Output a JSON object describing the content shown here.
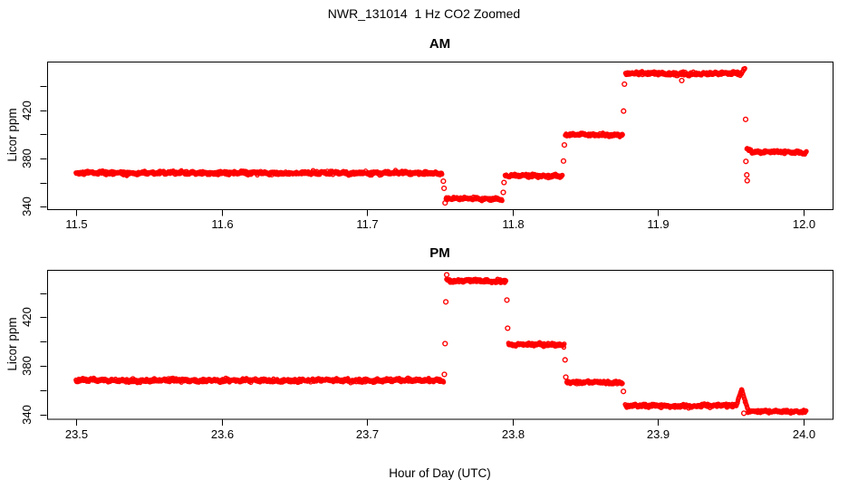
{
  "title": "NWR_131014  1 Hz CO2 Zoomed",
  "xlabel": "Hour of Day (UTC)",
  "colors": {
    "points": "#FF0000",
    "axis": "#000000",
    "background": "#FFFFFF"
  },
  "chart_data": [
    {
      "type": "scatter",
      "panel": "AM",
      "title": "AM",
      "ylabel": "Licor ppm",
      "marker": "open-circle",
      "sample_rate_hz": 1,
      "xlim": [
        11.48,
        12.02
      ],
      "ylim": [
        338.0,
        460.3
      ],
      "xticks": [
        "11.5",
        "11.6",
        "11.7",
        "11.8",
        "11.9",
        "12.0"
      ],
      "yticks_labeled": [
        "340",
        "380",
        "420"
      ],
      "yticks_unlabeled": [
        360,
        400,
        440
      ],
      "grid": false,
      "segments": [
        {
          "t0": 11.4998,
          "t1": 11.7515,
          "v": 368.0,
          "n": 1.5
        },
        {
          "t0": 11.7542,
          "t1": 11.793,
          "v": 346.5,
          "n": 1.3
        },
        {
          "t0": 11.7948,
          "t1": 11.8345,
          "v": 365.6,
          "n": 1.3
        },
        {
          "t0": 11.8362,
          "t1": 11.8758,
          "v": 399.6,
          "n": 1.3
        },
        {
          "t0": 11.8776,
          "t1": 11.9572,
          "v": 450.3,
          "n": 1.5
        },
        {
          "t0": 11.9572,
          "t1": 11.9598,
          "v0": 450.8,
          "v1": 454.6,
          "n": 0.9
        },
        {
          "t0": 11.961,
          "t1": 11.9645,
          "v0": 388.6,
          "v1": 385.8,
          "n": 0.9
        },
        {
          "t0": 11.9645,
          "t1": 12.002,
          "v": 385.2,
          "n": 1.2
        }
      ],
      "outliers": [
        [
          11.7524,
          361.2
        ],
        [
          11.7529,
          355.3
        ],
        [
          11.7536,
          343.2
        ],
        [
          11.7936,
          351.9
        ],
        [
          11.7941,
          360.1
        ],
        [
          11.835,
          377.9
        ],
        [
          11.8356,
          391.2
        ],
        [
          11.8763,
          419.3
        ],
        [
          11.8769,
          441.6
        ],
        [
          11.9163,
          444.6
        ],
        [
          11.9602,
          412.4
        ],
        [
          11.9604,
          377.6
        ],
        [
          11.961,
          366.4
        ],
        [
          11.9613,
          361.6
        ]
      ]
    },
    {
      "type": "scatter",
      "panel": "PM",
      "title": "PM",
      "ylabel": "Licor ppm",
      "marker": "open-circle",
      "sample_rate_hz": 1,
      "xlim": [
        23.48,
        24.02
      ],
      "ylim": [
        336.3,
        459.1
      ],
      "xticks": [
        "23.5",
        "23.6",
        "23.7",
        "23.8",
        "23.9",
        "24.0"
      ],
      "yticks_labeled": [
        "340",
        "380",
        "420"
      ],
      "yticks_unlabeled": [
        360,
        400,
        440
      ],
      "grid": false,
      "segments": [
        {
          "t0": 23.4998,
          "t1": 23.7526,
          "v": 368.0,
          "n": 1.5
        },
        {
          "t0": 23.7546,
          "t1": 23.7956,
          "v": 450.0,
          "n": 1.5
        },
        {
          "t0": 23.7972,
          "t1": 23.8356,
          "v": 397.4,
          "n": 1.3
        },
        {
          "t0": 23.8372,
          "t1": 23.8758,
          "v": 366.2,
          "n": 1.3
        },
        {
          "t0": 23.8774,
          "t1": 23.9538,
          "v": 347.0,
          "n": 1.4
        },
        {
          "t0": 23.9538,
          "t1": 23.9576,
          "v0": 347.5,
          "v1": 361.0,
          "n": 0.8
        },
        {
          "t0": 23.9576,
          "t1": 23.9618,
          "v0": 360.5,
          "v1": 343.2,
          "n": 0.8
        },
        {
          "t0": 23.9618,
          "t1": 24.002,
          "v": 342.3,
          "n": 1.1
        }
      ],
      "outliers": [
        [
          23.7531,
          372.9
        ],
        [
          23.7536,
          398.3
        ],
        [
          23.7541,
          432.7
        ],
        [
          23.7547,
          455.0
        ],
        [
          23.7961,
          434.2
        ],
        [
          23.7966,
          411.0
        ],
        [
          23.8361,
          384.9
        ],
        [
          23.8366,
          370.7
        ],
        [
          23.8762,
          358.9
        ],
        [
          23.959,
          340.9
        ]
      ]
    }
  ]
}
